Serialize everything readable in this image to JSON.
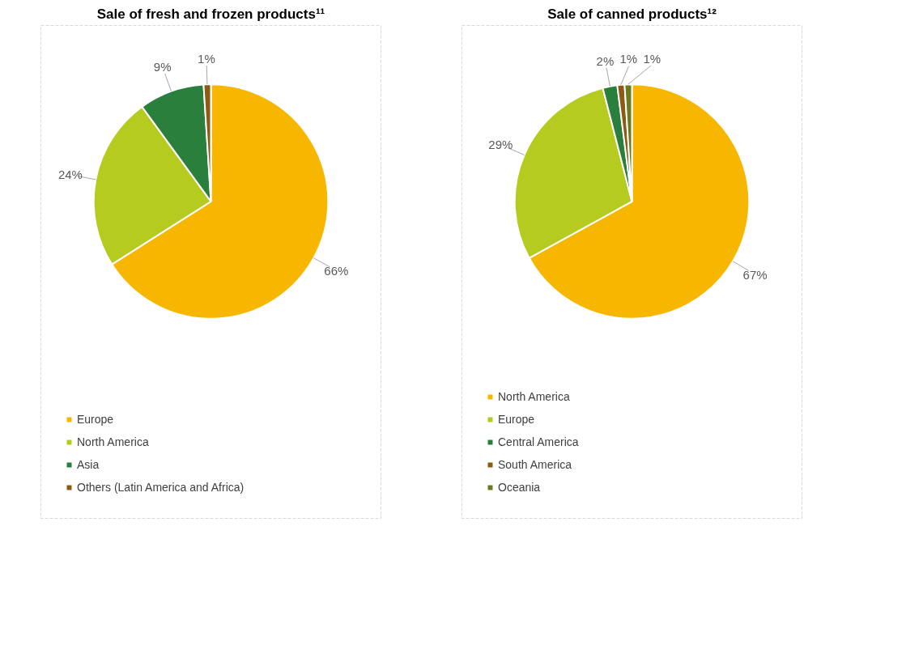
{
  "chart_data": [
    {
      "type": "pie",
      "title": "Sale of fresh and frozen products¹¹",
      "categories": [
        "Europe",
        "North America",
        "Asia",
        "Others (Latin America and Africa)"
      ],
      "values": [
        66,
        24,
        9,
        1
      ],
      "colors": [
        "#f7b600",
        "#b5cb1f",
        "#2a7f3c",
        "#8c5a12"
      ],
      "value_labels": [
        "66%",
        "24%",
        "9%",
        "1%"
      ],
      "legend": "bottom"
    },
    {
      "type": "pie",
      "title": "Sale of canned products¹²",
      "categories": [
        "North America",
        "Europe",
        "Central America",
        "South America",
        "Oceania"
      ],
      "values": [
        67,
        29,
        2,
        1,
        1
      ],
      "colors": [
        "#f7b600",
        "#b5cb1f",
        "#2a7f3c",
        "#8c5a12",
        "#6b7a1f"
      ],
      "value_labels": [
        "67%",
        "29%",
        "2%",
        "1%",
        "1%"
      ],
      "legend": "bottom"
    }
  ]
}
